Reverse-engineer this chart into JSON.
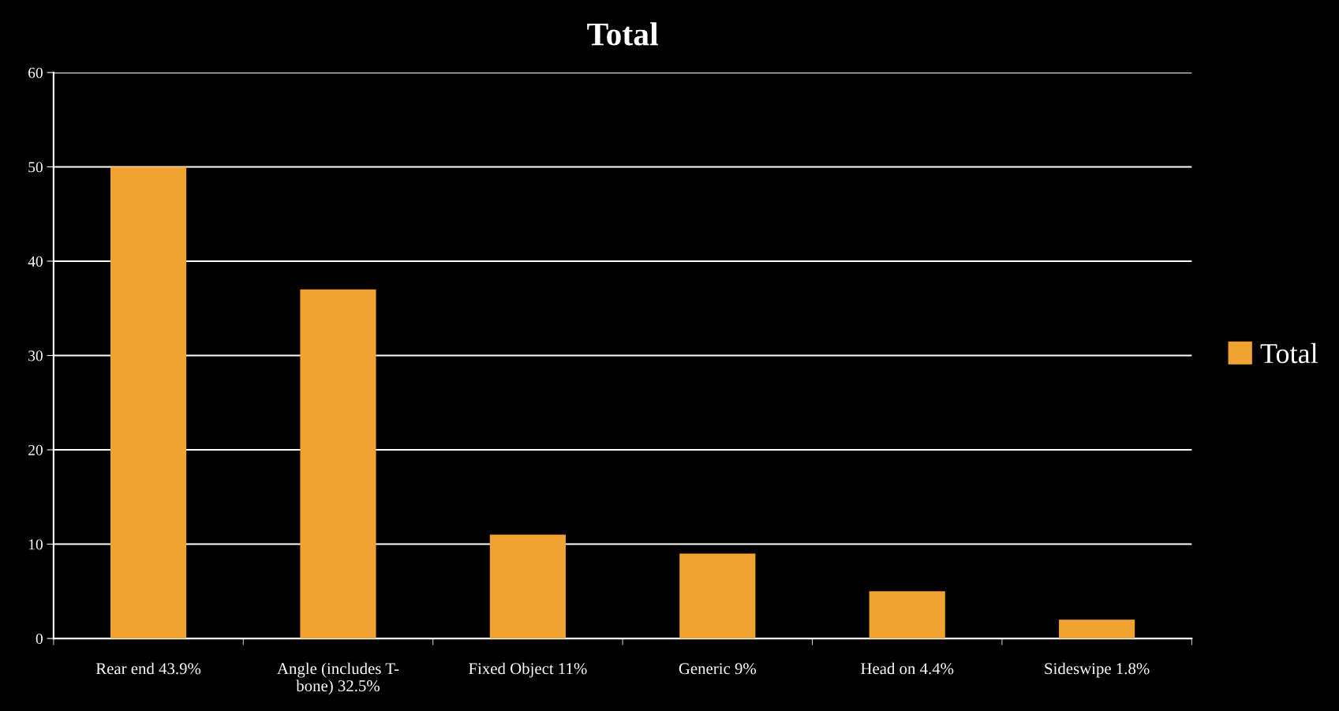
{
  "chart_data": {
    "type": "bar",
    "title": "Total",
    "categories": [
      "Rear end 43.9%",
      "Angle (includes T-\nbone) 32.5%",
      "Fixed Object 11%",
      "Generic 9%",
      "Head on 4.4%",
      "Sideswipe 1.8%"
    ],
    "series": [
      {
        "name": "Total",
        "color": "#f0a331",
        "values": [
          50,
          37,
          11,
          9,
          5,
          2
        ]
      }
    ],
    "ylim": [
      0,
      60
    ],
    "yticks": [
      0,
      10,
      20,
      30,
      40,
      50,
      60
    ],
    "grid": "y",
    "legend": "right"
  }
}
